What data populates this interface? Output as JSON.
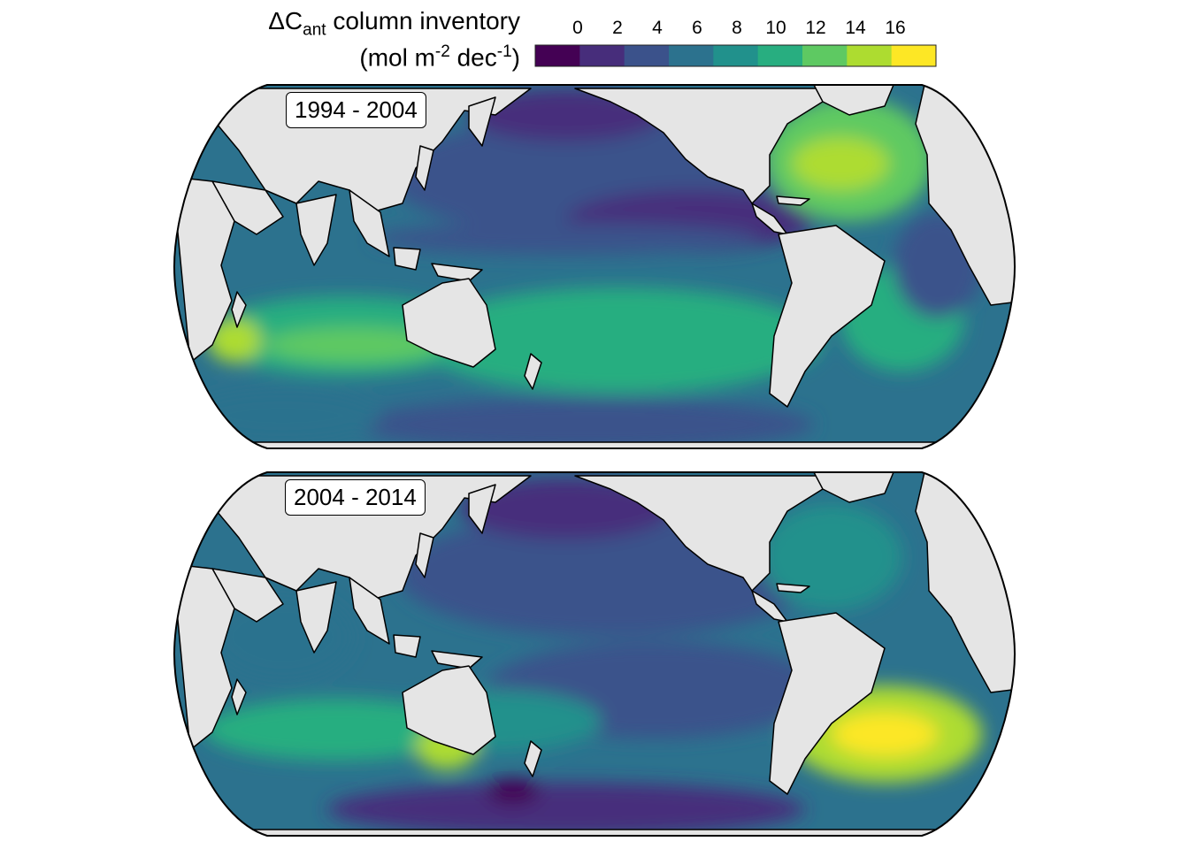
{
  "legend": {
    "symbol": "ΔC",
    "symbol_sub": "ant",
    "title_rest": " column inventory",
    "units_open": "(mol m",
    "units_sup1": "-2",
    "units_mid": " dec",
    "units_sup2": "-1",
    "units_close": ")",
    "ticks": [
      "0",
      "2",
      "4",
      "6",
      "8",
      "10",
      "12",
      "14",
      "16"
    ],
    "colors": [
      "#440154",
      "#472d7b",
      "#3b528b",
      "#2c728e",
      "#21918c",
      "#28ae80",
      "#5ec962",
      "#addc30",
      "#fde725"
    ]
  },
  "panels": [
    {
      "label": "1994 - 2004"
    },
    {
      "label": "2004 - 2014"
    }
  ],
  "map_colors": {
    "land": "#e5e5e5",
    "outline": "#000000"
  }
}
